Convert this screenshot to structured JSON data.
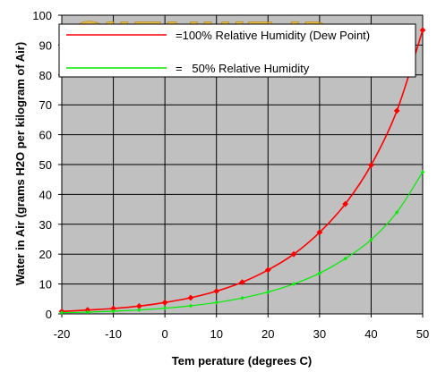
{
  "watermark": "GILTAJHIZ.IR",
  "chart_data": {
    "type": "line",
    "title": "",
    "xlabel": "Tem perature (degrees C)",
    "ylabel": "Water in Air (grams H2O per kilogram of Air)",
    "xlim": [
      -20,
      50
    ],
    "ylim": [
      0,
      100
    ],
    "x_ticks": [
      "-20",
      "-10",
      "0",
      "10",
      "20",
      "30",
      "40",
      "50"
    ],
    "y_ticks": [
      "0",
      "10",
      "20",
      "30",
      "40",
      "50",
      "60",
      "70",
      "80",
      "90",
      "100"
    ],
    "grid": true,
    "plot_background": "#c0c0c0",
    "legend_placement": "top-right",
    "x": [
      -20,
      -15,
      -10,
      -5,
      0,
      5,
      10,
      15,
      20,
      25,
      30,
      35,
      40,
      45,
      50
    ],
    "series": [
      {
        "name": "=100% Relative Humidity (Dew Point)",
        "color": "#ff0000",
        "values": [
          0.8,
          1.3,
          1.8,
          2.6,
          3.8,
          5.4,
          7.6,
          10.6,
          14.7,
          20.0,
          27.3,
          36.8,
          49.8,
          68.0,
          95.0
        ]
      },
      {
        "name": "=   50% Relative Humidity",
        "color": "#00ee00",
        "values": [
          0.4,
          0.6,
          0.9,
          1.3,
          1.9,
          2.7,
          3.8,
          5.3,
          7.3,
          10.0,
          13.6,
          18.5,
          24.8,
          34.0,
          47.5
        ]
      }
    ]
  }
}
